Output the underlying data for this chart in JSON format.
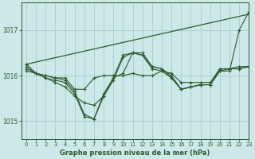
{
  "title": "Graphe pression niveau de la mer (hPa)",
  "background_color": "#cce8e8",
  "grid_color": "#aacccc",
  "line_color": "#2d5a2d",
  "xlim": [
    -0.5,
    23
  ],
  "ylim": [
    1014.6,
    1017.6
  ],
  "yticks": [
    1015,
    1016,
    1017
  ],
  "xticks": [
    0,
    1,
    2,
    3,
    4,
    5,
    6,
    7,
    8,
    9,
    10,
    11,
    12,
    13,
    14,
    15,
    16,
    17,
    18,
    19,
    20,
    21,
    22,
    23
  ],
  "figwidth": 3.2,
  "figheight": 2.0,
  "series": [
    [
      1016.25,
      1016.05,
      1016.0,
      1015.95,
      1015.95,
      1015.7,
      1015.7,
      1015.95,
      1016.0,
      1016.0,
      1016.0,
      1016.05,
      1016.0,
      1016.0,
      1016.1,
      1016.05,
      1015.85,
      1015.85,
      1015.85,
      1015.85,
      1016.15,
      1016.15,
      1016.15,
      1016.2
    ],
    [
      1016.1,
      1016.05,
      1015.95,
      1015.85,
      1015.75,
      1015.55,
      1015.4,
      1015.35,
      1015.55,
      1015.95,
      1016.05,
      1016.5,
      1016.45,
      1016.15,
      1016.1,
      1015.95,
      1015.7,
      1015.75,
      1015.8,
      1015.8,
      1016.15,
      1016.15,
      1016.2,
      1016.2
    ],
    [
      1016.2,
      1016.05,
      1016.0,
      1015.95,
      1015.9,
      1015.65,
      1015.15,
      1015.05,
      1015.6,
      1015.95,
      1016.45,
      1016.5,
      1016.45,
      1016.2,
      1016.15,
      1015.95,
      1015.7,
      1015.75,
      1015.8,
      1015.8,
      1016.1,
      1016.15,
      1016.15,
      1016.2
    ],
    [
      1016.15,
      1016.05,
      1015.95,
      1015.9,
      1015.85,
      1015.6,
      1015.1,
      1015.05,
      1015.55,
      1015.9,
      1016.4,
      1016.5,
      1016.5,
      1016.2,
      1016.15,
      1016.0,
      1015.7,
      1015.75,
      1015.8,
      1015.8,
      1016.1,
      1016.1,
      1017.0,
      1017.4
    ]
  ],
  "series_straight": [
    [
      0,
      1016.25
    ],
    [
      23,
      1017.35
    ]
  ]
}
